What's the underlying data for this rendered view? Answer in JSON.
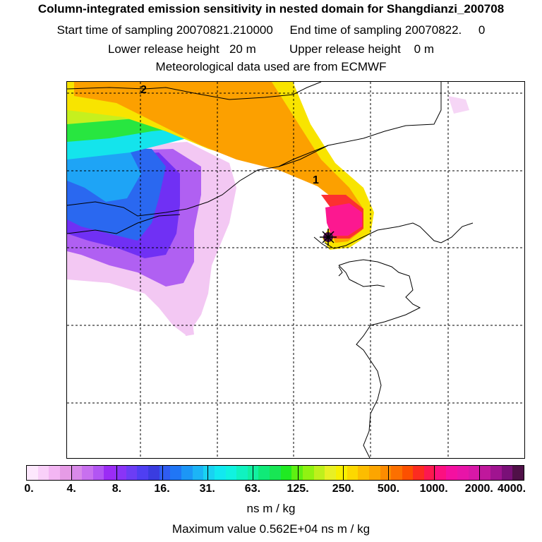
{
  "title": {
    "line1": "Column-integrated emission sensitivity in nested domain for Shangdianzi_200708",
    "line2": "Start time of sampling 20070821.210000     End time of sampling 20070822.     0",
    "line3": "Lower release height   20 m          Upper release height    0 m",
    "line4": "Meteorological data used are from ECMWF"
  },
  "map": {
    "labels": {
      "marker_1": "1",
      "marker_2": "2"
    },
    "receptor": "Shangdianzi",
    "graticule": "dashed"
  },
  "colorbar": {
    "tick_labels": [
      "0.",
      "4.",
      "8.",
      "16.",
      "31.",
      "63.",
      "125.",
      "250.",
      "500.",
      "1000.",
      "2000.",
      "4000."
    ],
    "colors": [
      "#fde8fd",
      "#f9d0f9",
      "#f3b6f3",
      "#e69be6",
      "#d98ae9",
      "#c870ef",
      "#b255f3",
      "#9b2cf5",
      "#8a34f7",
      "#6c3df5",
      "#4f3ff2",
      "#3a3ce0",
      "#2f5cf2",
      "#2076f5",
      "#1c96f6",
      "#1cb4f6",
      "#19d2f2",
      "#12e8f0",
      "#10f2e0",
      "#10f2c0",
      "#12f0a0",
      "#10ea78",
      "#18e654",
      "#20ea22",
      "#5ef012",
      "#90f212",
      "#bef01c",
      "#e8f024",
      "#f8f000",
      "#fcd800",
      "#fcbd00",
      "#fca500",
      "#fc8c00",
      "#fc7000",
      "#fc5000",
      "#fc2c20",
      "#fc1850",
      "#fc1080",
      "#f410a0",
      "#e814a8",
      "#d818a8",
      "#c0189c",
      "#a01490",
      "#7a1078",
      "#501048"
    ],
    "units": "ns m / kg",
    "max_label": "Maximum value  0.562E+04 ns m / kg"
  }
}
